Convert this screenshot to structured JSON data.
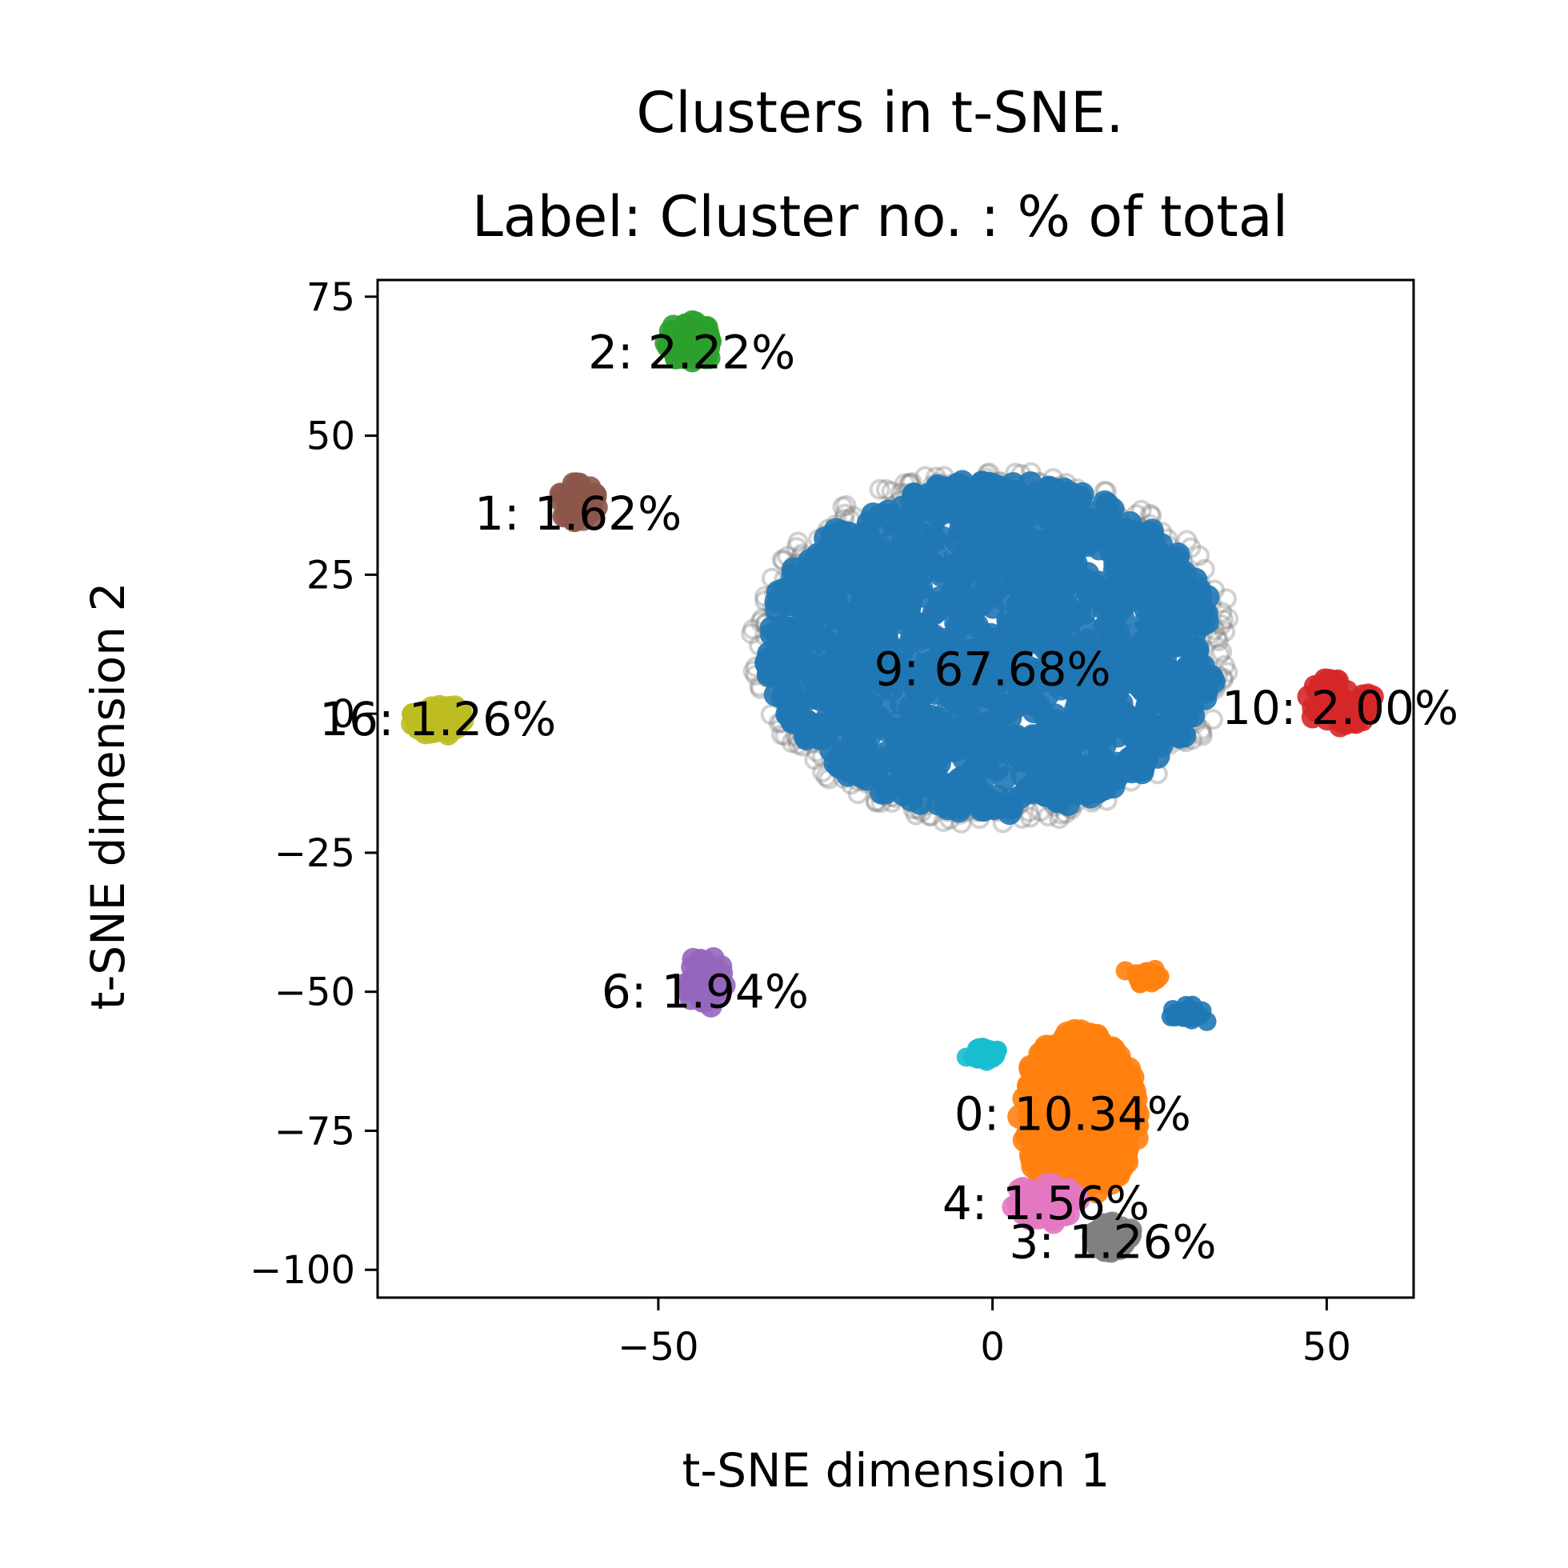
{
  "chart_data": {
    "type": "scatter",
    "title": "Clusters in t-SNE.",
    "subtitle": "Label: Cluster no. : % of total",
    "xlabel": "t-SNE dimension 1",
    "ylabel": "t-SNE dimension 2",
    "xlim": [
      -92,
      63
    ],
    "ylim": [
      -105,
      78
    ],
    "xticks": [
      -50,
      0,
      50
    ],
    "yticks": [
      75,
      50,
      25,
      0,
      -25,
      -50,
      -75,
      -100
    ],
    "xtick_labels": [
      "−50",
      "0",
      "50"
    ],
    "ytick_labels": [
      "75",
      "50",
      "25",
      "0",
      "−25",
      "−50",
      "−75",
      "−100"
    ],
    "grid": false,
    "legend": "none",
    "noise_color": "#7f7f7f",
    "clusters": [
      {
        "id": 9,
        "label": "9: 67.68%",
        "color": "#1f77b4",
        "center": [
          0,
          12
        ],
        "spread": [
          34,
          30
        ],
        "label_pos": [
          0,
          8
        ]
      },
      {
        "id": 0,
        "label": "0: 10.34%",
        "color": "#ff7f0e",
        "center": [
          13,
          -72
        ],
        "spread": [
          9,
          15
        ],
        "label_pos": [
          12,
          -72
        ]
      },
      {
        "id": 2,
        "label": "2: 2.22%",
        "color": "#2ca02c",
        "center": [
          -45,
          67
        ],
        "spread": [
          4,
          4
        ],
        "label_pos": [
          -45,
          65
        ]
      },
      {
        "id": 1,
        "label": "1: 1.62%",
        "color": "#8c564b",
        "center": [
          -62,
          38
        ],
        "spread": [
          3,
          4
        ],
        "label_pos": [
          -62,
          36
        ]
      },
      {
        "id": 16,
        "label": "16: 1.26%",
        "color": "#bcbd22",
        "center": [
          -83,
          -1
        ],
        "spread": [
          4,
          3
        ],
        "label_pos": [
          -83,
          -1
        ]
      },
      {
        "id": 6,
        "label": "6: 1.94%",
        "color": "#9467bd",
        "center": [
          -43,
          -48
        ],
        "spread": [
          3,
          5
        ],
        "label_pos": [
          -43,
          -50
        ]
      },
      {
        "id": 10,
        "label": "10: 2.00%",
        "color": "#d62728",
        "center": [
          52,
          2
        ],
        "spread": [
          5,
          5
        ],
        "label_pos": [
          52,
          1
        ]
      },
      {
        "id": 4,
        "label": "4: 1.56%",
        "color": "#e377c2",
        "center": [
          8,
          -88
        ],
        "spread": [
          5,
          4
        ],
        "label_pos": [
          8,
          -88
        ]
      },
      {
        "id": 3,
        "label": "3: 1.26%",
        "color": "#7f7f7f",
        "center": [
          18,
          -94
        ],
        "spread": [
          3,
          3
        ],
        "label_pos": [
          18,
          -95
        ]
      }
    ],
    "extra_blobs": [
      {
        "color": "#17becf",
        "center": [
          -1,
          -61
        ],
        "spread": [
          3,
          2
        ]
      },
      {
        "color": "#ff7f0e",
        "center": [
          23,
          -47
        ],
        "spread": [
          2,
          1.5
        ]
      },
      {
        "color": "#1f77b4",
        "center": [
          29,
          -54
        ],
        "spread": [
          2.5,
          1.5
        ]
      }
    ]
  }
}
